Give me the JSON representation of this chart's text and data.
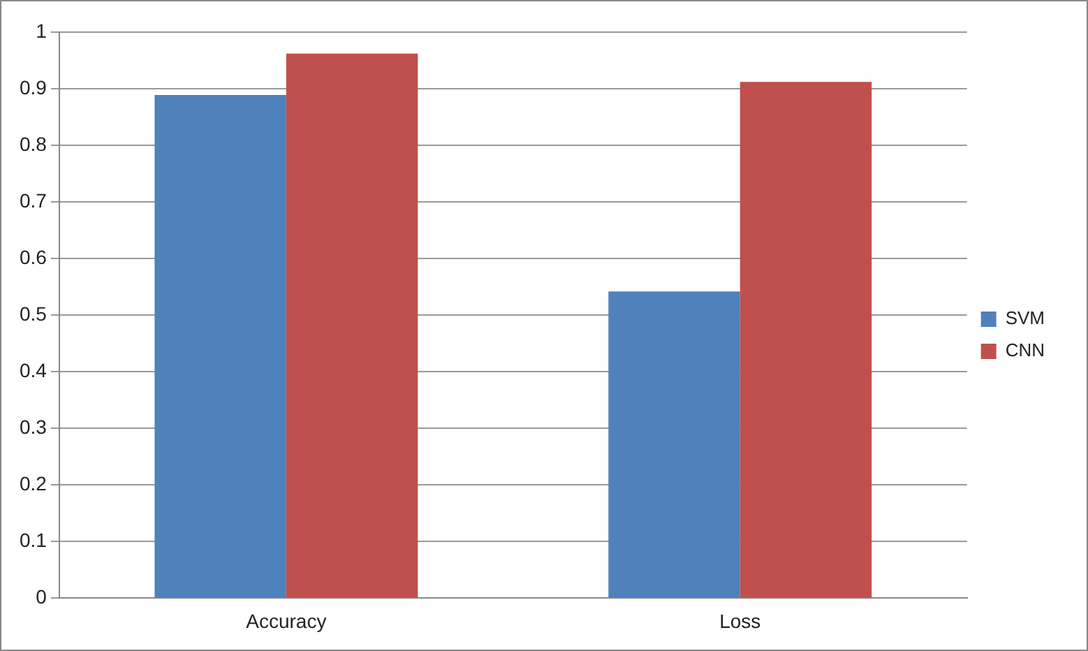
{
  "chart_data": {
    "type": "bar",
    "categories": [
      "Accuracy",
      "Loss"
    ],
    "series": [
      {
        "name": "SVM",
        "color": "#4f81bd",
        "values": [
          0.889,
          0.542
        ]
      },
      {
        "name": "CNN",
        "color": "#c0504d",
        "values": [
          0.962,
          0.912
        ]
      }
    ],
    "ylim": [
      0,
      1
    ],
    "yticks": [
      0,
      0.1,
      0.2,
      0.3,
      0.4,
      0.5,
      0.6,
      0.7,
      0.8,
      0.9,
      1
    ],
    "grid": "y",
    "legend": "right"
  }
}
